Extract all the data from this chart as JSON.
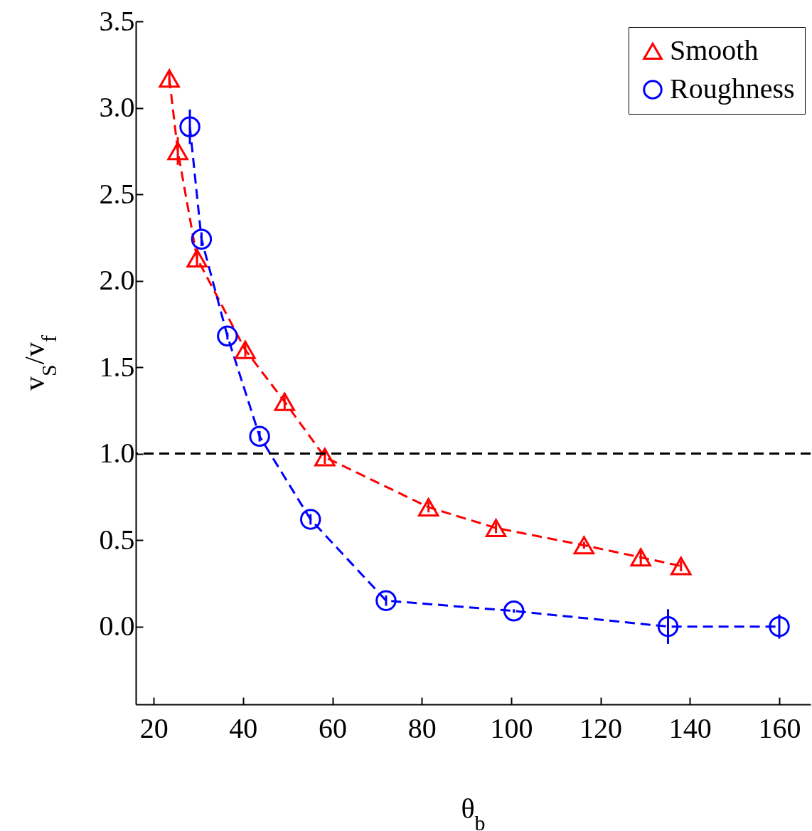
{
  "chart_data": {
    "type": "line",
    "xlabel": "θ$_{b}$",
    "ylabel": "v$_{S}$/v$_{f}$",
    "xlim": [
      16,
      167
    ],
    "ylim": [
      -0.45,
      3.5
    ],
    "xticks": [
      20,
      40,
      60,
      80,
      100,
      120,
      140,
      160
    ],
    "yticks": [
      {
        "value": 0,
        "label": "0.0"
      },
      {
        "value": 0.5,
        "label": "0.5"
      },
      {
        "value": 1,
        "label": "1.0"
      },
      {
        "value": 1.5,
        "label": "1.5"
      },
      {
        "value": 2,
        "label": "2.0"
      },
      {
        "value": 2.5,
        "label": "2.5"
      },
      {
        "value": 3,
        "label": "3.0"
      },
      {
        "value": 3.5,
        "label": "3.5"
      }
    ],
    "line_style": "dashed",
    "legend": "top right",
    "grid": false,
    "ref_lines": [
      {
        "axis": "y",
        "value": 1,
        "color": "#000000",
        "line_style": "dashed"
      }
    ],
    "series": [
      {
        "name": "Smooth",
        "color": "#ff0000",
        "marker": "triangle",
        "x": [
          23.5,
          25.4,
          29.7,
          40.5,
          49.3,
          58.3,
          81.5,
          96.6,
          116.3,
          129,
          138
        ],
        "values": [
          3.17,
          2.75,
          2.13,
          1.6,
          1.3,
          0.98,
          0.69,
          0.57,
          0.47,
          0.4,
          0.35
        ],
        "errors": [
          0.04,
          0.08,
          0.05,
          0.04,
          0.05,
          0.04,
          0.03,
          0.03,
          0.02,
          0.05,
          0.03
        ]
      },
      {
        "name": "Roughness",
        "color": "#0000ff",
        "marker": "circle",
        "x": [
          28.1,
          30.7,
          36.5,
          43.7,
          55.1,
          72,
          100.6,
          135.1,
          160
        ],
        "values": [
          2.89,
          2.24,
          1.68,
          1.1,
          0.62,
          0.15,
          0.09,
          0,
          0
        ],
        "errors": [
          0.1,
          0.04,
          0.02,
          0.03,
          0.03,
          0.03,
          0.01,
          0.1,
          0.07
        ]
      }
    ]
  }
}
